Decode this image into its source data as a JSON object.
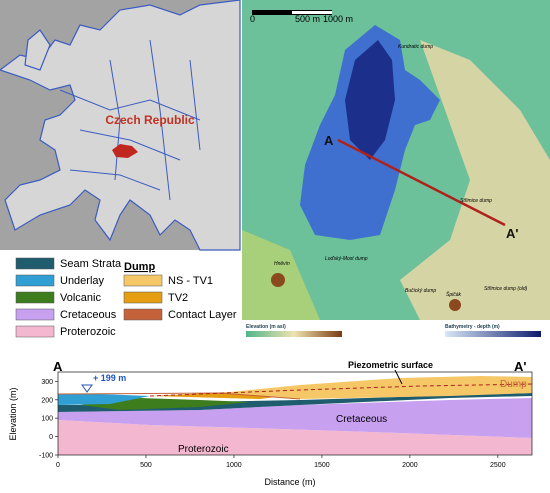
{
  "europe_map": {
    "label": "Czech Republic"
  },
  "site_map": {
    "scale": {
      "zero": "0",
      "mid": "500 m",
      "end": "1000 m"
    },
    "profile_start": "A",
    "profile_end": "A'",
    "places": [
      "Střimice dump",
      "Loďský-Most dump",
      "Bučický dump",
      "Hněvín",
      "Špičák",
      "Střimice dump (old)",
      "Kundratic dump"
    ],
    "elevation_bar": "Elevation (m asl)",
    "depth_bar": "Bathymetry - depth (m)"
  },
  "legend": {
    "strata": [
      {
        "label": "Seam Strata",
        "color": "#1f5c6e"
      },
      {
        "label": "Underlay",
        "color": "#2f9fd4"
      },
      {
        "label": "Volcanic",
        "color": "#3d7d1e"
      },
      {
        "label": "Cretaceous",
        "color": "#c8a0f0"
      },
      {
        "label": "Proterozoic",
        "color": "#f3b8d0"
      }
    ],
    "dump_title": "Dump",
    "dump": [
      {
        "label": "NS - TV1",
        "color": "#f6c766"
      },
      {
        "label": "TV2",
        "color": "#e59d12"
      },
      {
        "label": "Contact Layer",
        "color": "#c4633b"
      }
    ]
  },
  "section": {
    "start": "A",
    "end": "A'",
    "lake_level": "+ 199 m",
    "piezometric": "Piezometric surface",
    "dump_label": "Dump",
    "cretaceous_label": "Cretaceous",
    "proterozoic_label": "Proterozoic",
    "xlabel": "Distance (m)",
    "ylabel": "Elevation (m)",
    "xlim": [
      0,
      2700
    ],
    "ylim": [
      -100,
      340
    ],
    "xticks": [
      0,
      500,
      1000,
      1500,
      2000,
      2500
    ],
    "yticks": [
      -100,
      0,
      100,
      200,
      300
    ]
  }
}
